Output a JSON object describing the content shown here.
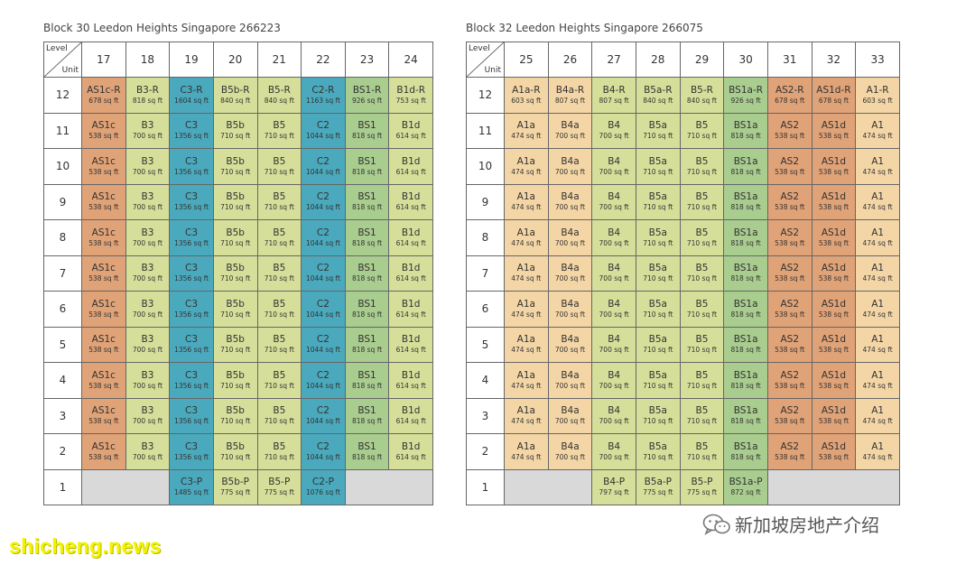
{
  "colors": {
    "orange": "#e0a277",
    "peach": "#f4d6a6",
    "light_green": "#d6df9a",
    "blue": "#4aa9bd",
    "green": "#a9cc8f",
    "empty": "#d9d9d9"
  },
  "block30": {
    "title": "Block 30 Leedon Heights Singapore 266223",
    "corner_level": "Level",
    "corner_unit": "Unit",
    "units": [
      "17",
      "18",
      "19",
      "20",
      "21",
      "22",
      "23",
      "24"
    ],
    "col_colors": [
      "orange",
      "light_green",
      "blue",
      "light_green",
      "light_green",
      "blue",
      "green",
      "light_green"
    ],
    "upper_levels": [
      "11",
      "10",
      "9",
      "8",
      "7",
      "6",
      "5",
      "4",
      "3",
      "2"
    ],
    "level12": {
      "level": "12",
      "cells": [
        {
          "type": "AS1c-R",
          "area": "678 sq ft"
        },
        {
          "type": "B3-R",
          "area": "818 sq ft"
        },
        {
          "type": "C3-R",
          "area": "1604 sq ft"
        },
        {
          "type": "B5b-R",
          "area": "840 sq ft"
        },
        {
          "type": "B5-R",
          "area": "840 sq ft"
        },
        {
          "type": "C2-R",
          "area": "1163 sq ft"
        },
        {
          "type": "BS1-R",
          "area": "926 sq ft"
        },
        {
          "type": "B1d-R",
          "area": "753 sq ft"
        }
      ]
    },
    "standard": [
      {
        "type": "AS1c",
        "area": "538 sq ft"
      },
      {
        "type": "B3",
        "area": "700 sq ft"
      },
      {
        "type": "C3",
        "area": "1356 sq ft"
      },
      {
        "type": "B5b",
        "area": "710 sq ft"
      },
      {
        "type": "B5",
        "area": "710 sq ft"
      },
      {
        "type": "C2",
        "area": "1044 sq ft"
      },
      {
        "type": "BS1",
        "area": "818 sq ft"
      },
      {
        "type": "B1d",
        "area": "614 sq ft"
      }
    ],
    "level1": {
      "level": "1",
      "cells": [
        null,
        null,
        {
          "type": "C3-P",
          "area": "1485 sq ft"
        },
        {
          "type": "B5b-P",
          "area": "775 sq ft"
        },
        {
          "type": "B5-P",
          "area": "775 sq ft"
        },
        {
          "type": "C2-P",
          "area": "1076 sq ft"
        },
        null,
        null
      ]
    }
  },
  "block32": {
    "title": "Block 32 Leedon Heights Singapore 266075",
    "corner_level": "Level",
    "corner_unit": "Unit",
    "units": [
      "25",
      "26",
      "27",
      "28",
      "29",
      "30",
      "31",
      "32",
      "33"
    ],
    "col_colors": [
      "peach",
      "peach",
      "light_green",
      "light_green",
      "light_green",
      "green",
      "orange",
      "orange",
      "peach"
    ],
    "upper_levels": [
      "11",
      "10",
      "9",
      "8",
      "7",
      "6",
      "5",
      "4",
      "3",
      "2"
    ],
    "level12": {
      "level": "12",
      "cells": [
        {
          "type": "A1a-R",
          "area": "603 sq ft"
        },
        {
          "type": "B4a-R",
          "area": "807 sq ft"
        },
        {
          "type": "B4-R",
          "area": "807 sq ft"
        },
        {
          "type": "B5a-R",
          "area": "840 sq ft"
        },
        {
          "type": "B5-R",
          "area": "840 sq ft"
        },
        {
          "type": "BS1a-R",
          "area": "926 sq ft"
        },
        {
          "type": "AS2-R",
          "area": "678 sq ft"
        },
        {
          "type": "AS1d-R",
          "area": "678 sq ft"
        },
        {
          "type": "A1-R",
          "area": "603 sq ft"
        }
      ]
    },
    "standard": [
      {
        "type": "A1a",
        "area": "474 sq ft"
      },
      {
        "type": "B4a",
        "area": "700 sq ft"
      },
      {
        "type": "B4",
        "area": "700 sq ft"
      },
      {
        "type": "B5a",
        "area": "710 sq ft"
      },
      {
        "type": "B5",
        "area": "710 sq ft"
      },
      {
        "type": "BS1a",
        "area": "818 sq ft"
      },
      {
        "type": "AS2",
        "area": "538 sq ft"
      },
      {
        "type": "AS1d",
        "area": "538 sq ft"
      },
      {
        "type": "A1",
        "area": "474 sq ft"
      }
    ],
    "level1": {
      "level": "1",
      "cells": [
        null,
        null,
        {
          "type": "B4-P",
          "area": "797 sq ft"
        },
        {
          "type": "B5a-P",
          "area": "775 sq ft"
        },
        {
          "type": "B5-P",
          "area": "775 sq ft"
        },
        {
          "type": "BS1a-P",
          "area": "872 sq ft"
        },
        null,
        null,
        null
      ]
    }
  },
  "watermark": {
    "text": "shicheng.news"
  },
  "wechat": {
    "icon": "wechat-icon",
    "text": "新加坡房地产介绍"
  }
}
